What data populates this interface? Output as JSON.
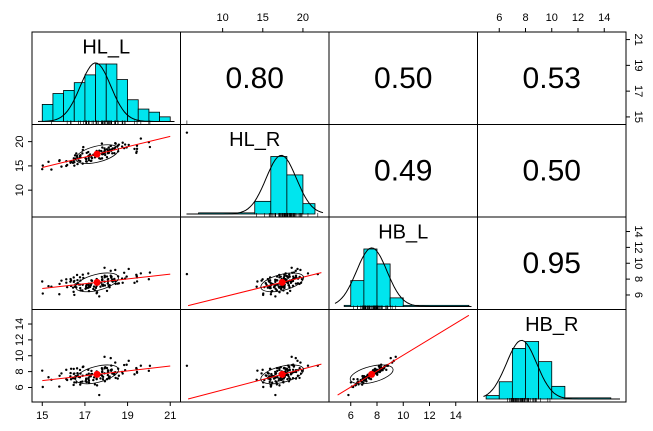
{
  "chart_data": {
    "type": "scatter",
    "variables": [
      "HL_L",
      "HL_R",
      "HB_L",
      "HB_R"
    ],
    "correlations": [
      {
        "row": "HL_L",
        "col": "HL_R",
        "value": "0.80"
      },
      {
        "row": "HL_L",
        "col": "HB_L",
        "value": "0.50"
      },
      {
        "row": "HL_L",
        "col": "HB_R",
        "value": "0.53"
      },
      {
        "row": "HL_R",
        "col": "HB_L",
        "value": "0.49"
      },
      {
        "row": "HL_R",
        "col": "HB_R",
        "value": "0.50"
      },
      {
        "row": "HB_L",
        "col": "HB_R",
        "value": "0.95"
      }
    ],
    "axes": {
      "bottom_HL_L": {
        "ticks": [
          "15",
          "17",
          "19",
          "21"
        ],
        "range": [
          14.8,
          21.2
        ]
      },
      "top_HL_R": {
        "ticks": [
          "10",
          "15",
          "20"
        ],
        "range": [
          5.5,
          22.5
        ]
      },
      "top_HB_R": {
        "ticks": [
          "6",
          "8",
          "10",
          "12",
          "14"
        ],
        "range": [
          4.8,
          15.2
        ]
      },
      "bottom_HB_L": {
        "ticks": [
          "6",
          "8",
          "10",
          "12",
          "14"
        ],
        "range": [
          4.8,
          15.2
        ]
      },
      "left_HL_R": {
        "ticks": [
          "10",
          "15",
          "20"
        ],
        "range": [
          5.5,
          22.5
        ]
      },
      "left_HB_R": {
        "ticks": [
          "6",
          "8",
          "10",
          "12",
          "14"
        ],
        "range": [
          4.8,
          15.2
        ]
      },
      "right_HL_L": {
        "ticks": [
          "15",
          "17",
          "19",
          "21"
        ],
        "range": [
          14.8,
          21.2
        ]
      },
      "right_HB_L": {
        "ticks": [
          "6",
          "8",
          "10",
          "12",
          "14"
        ],
        "range": [
          4.8,
          15.2
        ]
      }
    },
    "histograms": {
      "HL_L": {
        "edges": [
          15,
          15.5,
          16,
          16.5,
          17,
          17.5,
          18,
          18.5,
          19,
          19.5,
          20,
          20.5,
          21
        ],
        "counts": [
          11,
          18,
          20,
          25,
          30,
          37,
          37,
          27,
          14,
          8,
          6,
          3
        ]
      },
      "HL_R": {
        "edges": [
          7,
          14,
          16,
          18,
          20,
          21.5
        ],
        "counts": [
          2,
          22,
          100,
          68,
          18
        ]
      },
      "HB_L": {
        "edges": [
          5.5,
          6,
          7,
          8,
          9,
          10,
          15
        ],
        "counts": [
          2,
          45,
          100,
          74,
          15,
          2
        ]
      },
      "HB_R": {
        "edges": [
          5,
          6,
          7,
          8,
          9,
          10,
          11,
          14.5
        ],
        "counts": [
          6,
          30,
          88,
          100,
          65,
          22,
          2
        ]
      }
    },
    "means": {
      "HL_L": 17.5,
      "HL_R": 17.3,
      "HB_L": 7.6,
      "HB_R": 7.7
    },
    "points_per_panel": 120,
    "point_color": "#000000",
    "mean_color": "#ff0000",
    "smooth_color": "#ff0000",
    "hist_fill": "#00e5ee"
  }
}
